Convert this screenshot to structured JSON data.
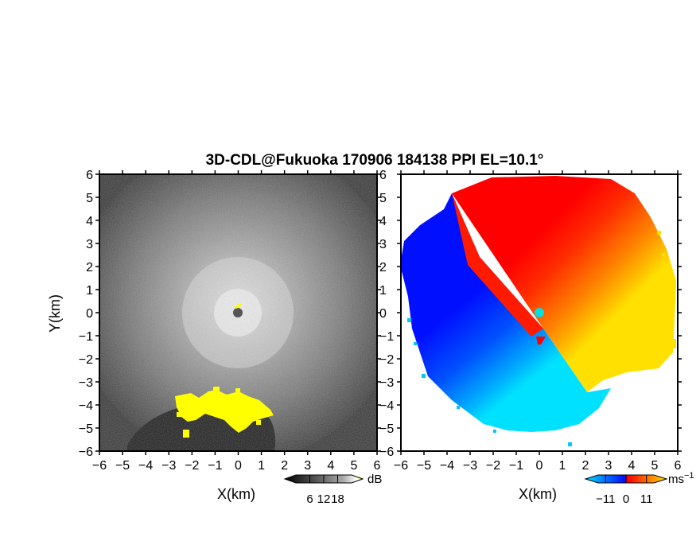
{
  "chart_data": {
    "title": "3D-CDL@Fukuoka 170906 184138 PPI EL=10.1°",
    "panels": [
      {
        "type": "heatmap",
        "quantity": "reflectivity",
        "xlabel": "X(km)",
        "ylabel": "Y(km)",
        "xlim": [
          -6,
          6
        ],
        "ylim": [
          -6,
          6
        ],
        "ticks": [
          -6,
          -5,
          -4,
          -3,
          -2,
          -1,
          0,
          1,
          2,
          3,
          4,
          5,
          6
        ],
        "colorbar": {
          "unit": "dB",
          "ticks": [
            6,
            12,
            18
          ],
          "colors": [
            "#000000",
            "#555555",
            "#aaaaaa",
            "#ffffff",
            "#ffff00"
          ]
        }
      },
      {
        "type": "heatmap",
        "quantity": "doppler velocity",
        "xlabel": "X(km)",
        "ylabel": "",
        "xlim": [
          -6,
          6
        ],
        "ylim": [
          -6,
          6
        ],
        "ticks": [
          -6,
          -5,
          -4,
          -3,
          -2,
          -1,
          0,
          1,
          2,
          3,
          4,
          5,
          6
        ],
        "colorbar": {
          "unit": "ms",
          "unit_exponent": "−1",
          "ticks": [
            -11,
            0,
            11
          ],
          "tick_labels": [
            "−11",
            "0",
            "11"
          ],
          "colors": [
            "#00e0ff",
            "#0070ff",
            "#0010ff",
            "#ff0000",
            "#ff6a00",
            "#ffe000"
          ]
        }
      }
    ]
  }
}
